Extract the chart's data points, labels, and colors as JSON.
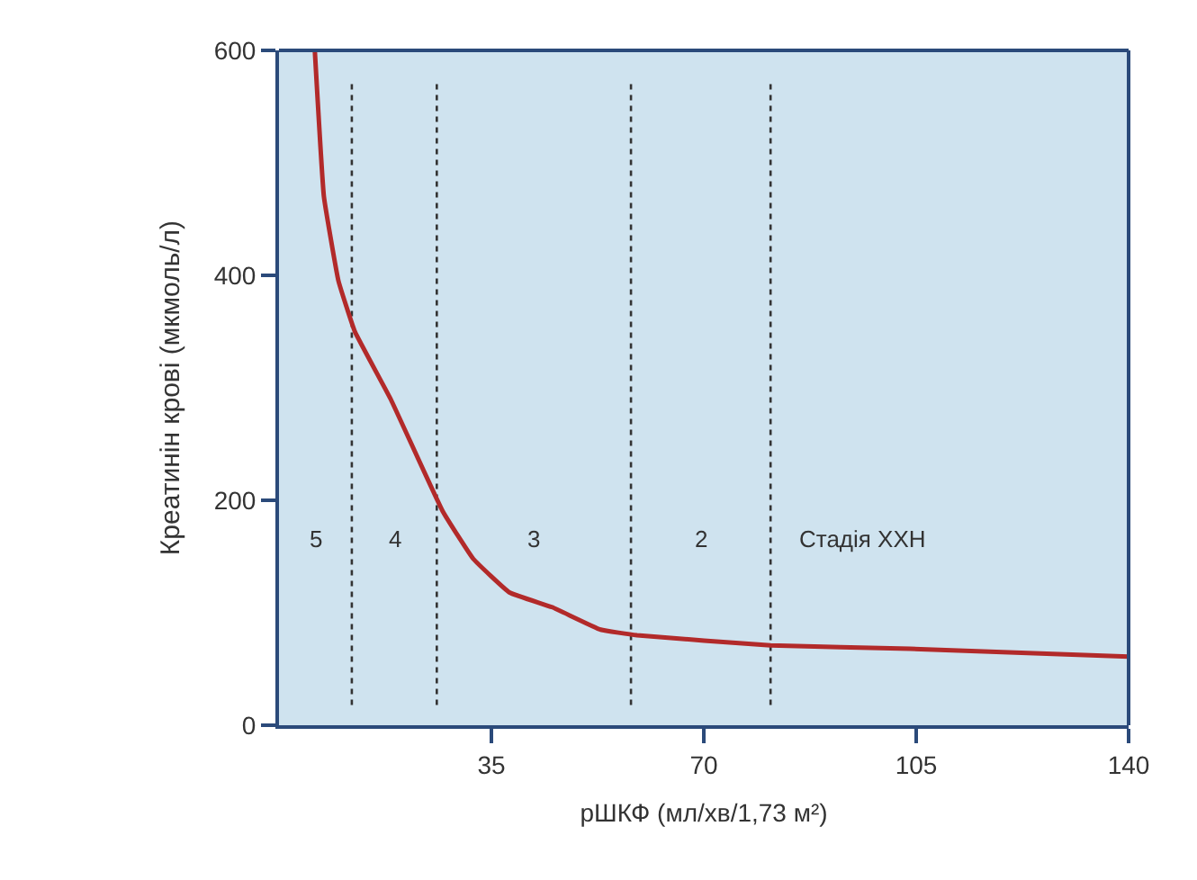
{
  "chart_data": {
    "type": "line",
    "xlabel": "рШКФ (мл/хв/1,73 м²)",
    "ylabel": "Креатинін крові (мкмоль/л)",
    "xlim": [
      0,
      140
    ],
    "xticks": [
      35,
      70,
      105,
      140
    ],
    "ylim": [
      0,
      600
    ],
    "yticks": [
      0,
      200,
      400,
      600
    ],
    "grid": false,
    "marker": "none",
    "line_style": "solid",
    "series": [
      {
        "color": "#b22a2a",
        "x": [
          5.9,
          7.4,
          9.8,
          12.5,
          18.4,
          27,
          32,
          38,
          45,
          53,
          59,
          81,
          104,
          140
        ],
        "values": [
          600,
          470,
          395,
          350,
          290,
          190,
          148,
          118,
          105,
          85,
          80,
          71,
          68,
          61
        ]
      }
    ],
    "ref_lines": [
      {
        "axis": "x",
        "value": 12,
        "line_style": "dotted",
        "color": "#333333"
      },
      {
        "axis": "x",
        "value": 26,
        "line_style": "dotted",
        "color": "#333333"
      },
      {
        "axis": "x",
        "value": 58,
        "line_style": "dotted",
        "color": "#333333"
      },
      {
        "axis": "x",
        "value": 81,
        "line_style": "dotted",
        "color": "#333333"
      }
    ],
    "annotations": [
      "5",
      "4",
      "3",
      "2",
      "Стадія ХХН"
    ]
  }
}
